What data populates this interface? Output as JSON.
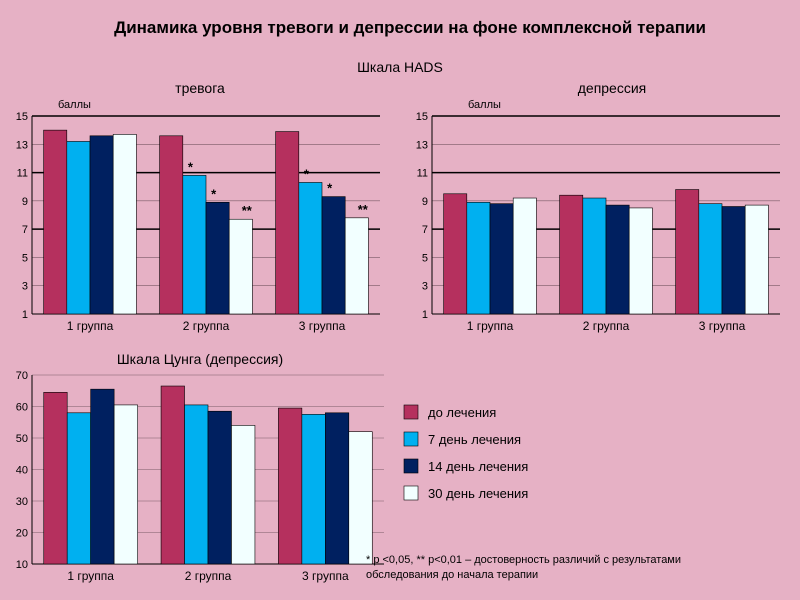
{
  "title": "Динамика уровня тревоги и депрессии на фоне комплексной терапии",
  "colors": [
    "#b5305e",
    "#00b0f0",
    "#002060",
    "#f2ffff"
  ],
  "legend": [
    "до лечения",
    "7 день лечения",
    "14 день лечения",
    "30 день лечения"
  ],
  "footnote": [
    "* р <0,05, ** р<0,01 – достоверность  различий с результатами",
    "обследования  до начала терапии"
  ],
  "chart_data": [
    {
      "type": "bar",
      "scale_title": "Шкала HADS",
      "title": "тревога",
      "ylabel": "баллы",
      "ylim": [
        1,
        15
      ],
      "yticks": [
        "1",
        "3",
        "5",
        "7",
        "9",
        "11",
        "13",
        "15"
      ],
      "categories": [
        "1 группа",
        "2 группа",
        "3 группа"
      ],
      "series": [
        {
          "name": "до лечения",
          "values": [
            14.0,
            13.6,
            13.9
          ]
        },
        {
          "name": "7 день лечения",
          "values": [
            13.2,
            10.8,
            10.3
          ]
        },
        {
          "name": "14 день лечения",
          "values": [
            13.6,
            8.9,
            9.3
          ]
        },
        {
          "name": "30 день лечения",
          "values": [
            13.7,
            7.7,
            7.8
          ]
        }
      ],
      "annotations": [
        {
          "category": 1,
          "series": 1,
          "text": "*"
        },
        {
          "category": 1,
          "series": 2,
          "text": "*"
        },
        {
          "category": 1,
          "series": 3,
          "text": "**"
        },
        {
          "category": 2,
          "series": 1,
          "text": "*"
        },
        {
          "category": 2,
          "series": 2,
          "text": "*"
        },
        {
          "category": 2,
          "series": 3,
          "text": "**"
        }
      ]
    },
    {
      "type": "bar",
      "title": "депрессия",
      "ylabel": "баллы",
      "ylim": [
        1,
        15
      ],
      "yticks": [
        "1",
        "3",
        "5",
        "7",
        "9",
        "11",
        "13",
        "15"
      ],
      "categories": [
        "1 группа",
        "2 группа",
        "3 группа"
      ],
      "series": [
        {
          "name": "до лечения",
          "values": [
            9.5,
            9.4,
            9.8
          ]
        },
        {
          "name": "7 день лечения",
          "values": [
            8.9,
            9.2,
            8.8
          ]
        },
        {
          "name": "14 день лечения",
          "values": [
            8.8,
            8.7,
            8.6
          ]
        },
        {
          "name": "30 день лечения",
          "values": [
            9.2,
            8.5,
            8.7
          ]
        }
      ]
    },
    {
      "type": "bar",
      "title": "Шкала Цунга (депрессия)",
      "ylim": [
        10,
        70
      ],
      "yticks": [
        "10",
        "20",
        "30",
        "40",
        "50",
        "60",
        "70"
      ],
      "categories": [
        "1 группа",
        "2 группа",
        "3 группа"
      ],
      "series": [
        {
          "name": "до лечения",
          "values": [
            64.5,
            66.5,
            59.5
          ]
        },
        {
          "name": "7 день лечения",
          "values": [
            58.0,
            60.5,
            57.5
          ]
        },
        {
          "name": "14 день лечения",
          "values": [
            65.5,
            58.5,
            58.0
          ]
        },
        {
          "name": "30 день лечения",
          "values": [
            60.5,
            54.0,
            52.0
          ]
        }
      ]
    }
  ]
}
